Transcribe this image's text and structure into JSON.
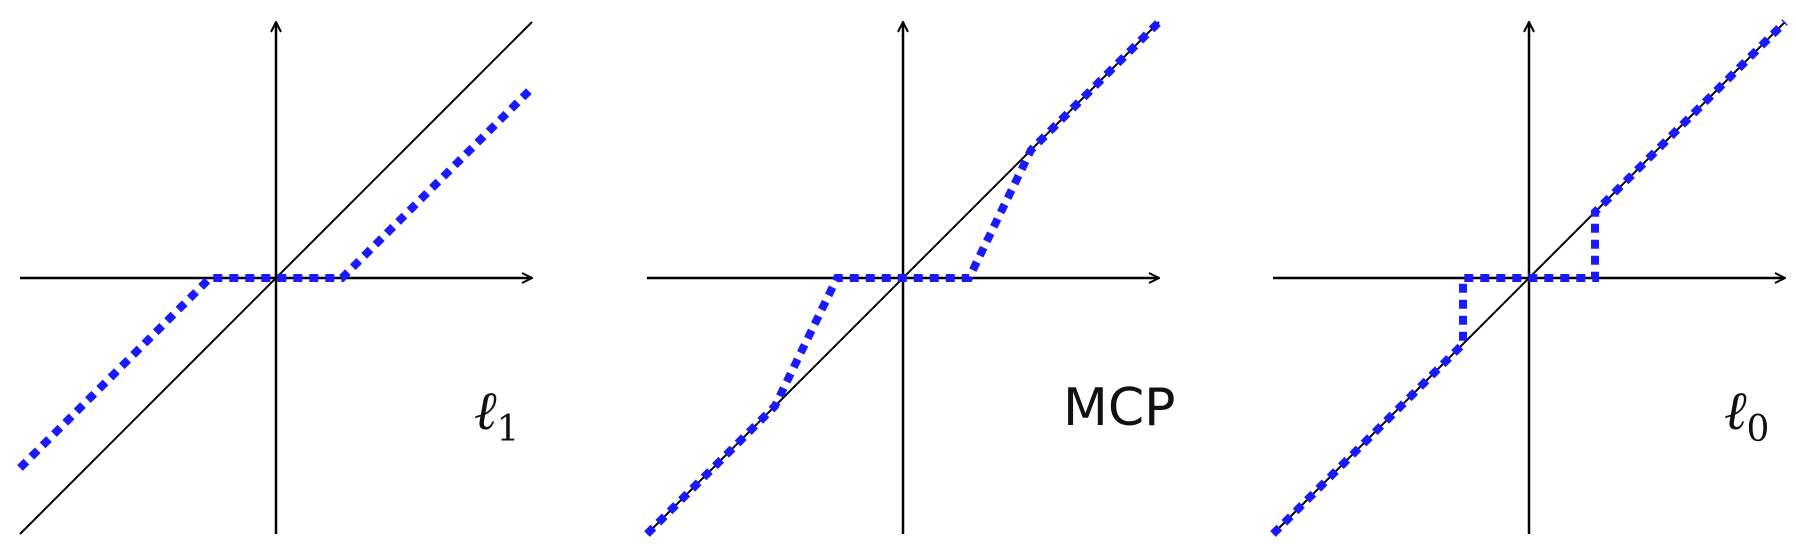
{
  "figure": {
    "style": {
      "axis_color": "#000000",
      "identity_color": "#000000",
      "threshold_color": "#1a1aff"
    },
    "panels": [
      {
        "id": "l1",
        "label_main": "ℓ",
        "label_sub": "1",
        "curve": "soft-threshold",
        "threshold": 0.5,
        "gamma": null
      },
      {
        "id": "mcp",
        "label_main": "MCP",
        "label_sub": "",
        "curve": "firm-threshold",
        "threshold": 0.5,
        "gamma": 2
      },
      {
        "id": "l0",
        "label_main": "ℓ",
        "label_sub": "0",
        "curve": "hard-threshold",
        "threshold": 0.5,
        "gamma": null
      }
    ]
  }
}
